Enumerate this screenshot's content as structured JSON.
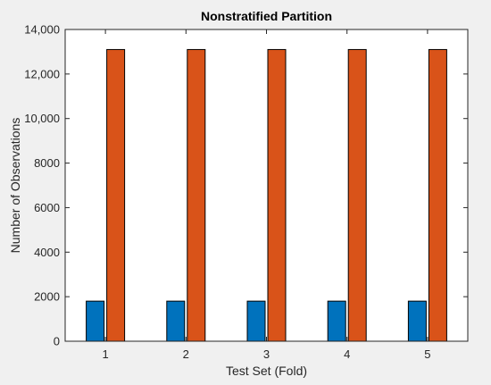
{
  "chart_data": {
    "type": "bar",
    "title": "Nonstratified Partition",
    "xlabel": "Test Set (Fold)",
    "ylabel": "Number of Observations",
    "categories": [
      "1",
      "2",
      "3",
      "4",
      "5"
    ],
    "series": [
      {
        "values": [
          1800,
          1800,
          1800,
          1800,
          1800
        ],
        "color": "#0072BD"
      },
      {
        "values": [
          13100,
          13100,
          13100,
          13100,
          13100
        ],
        "color": "#D95319"
      }
    ],
    "ylim": [
      0,
      14000
    ],
    "yticks": [
      0,
      2000,
      4000,
      6000,
      8000,
      10000,
      12000,
      14000
    ],
    "ytick_labels": [
      "0",
      "2000",
      "4000",
      "6000",
      "8000",
      "10,000",
      "12,000",
      "14,000"
    ],
    "grid": false,
    "legend": false
  }
}
